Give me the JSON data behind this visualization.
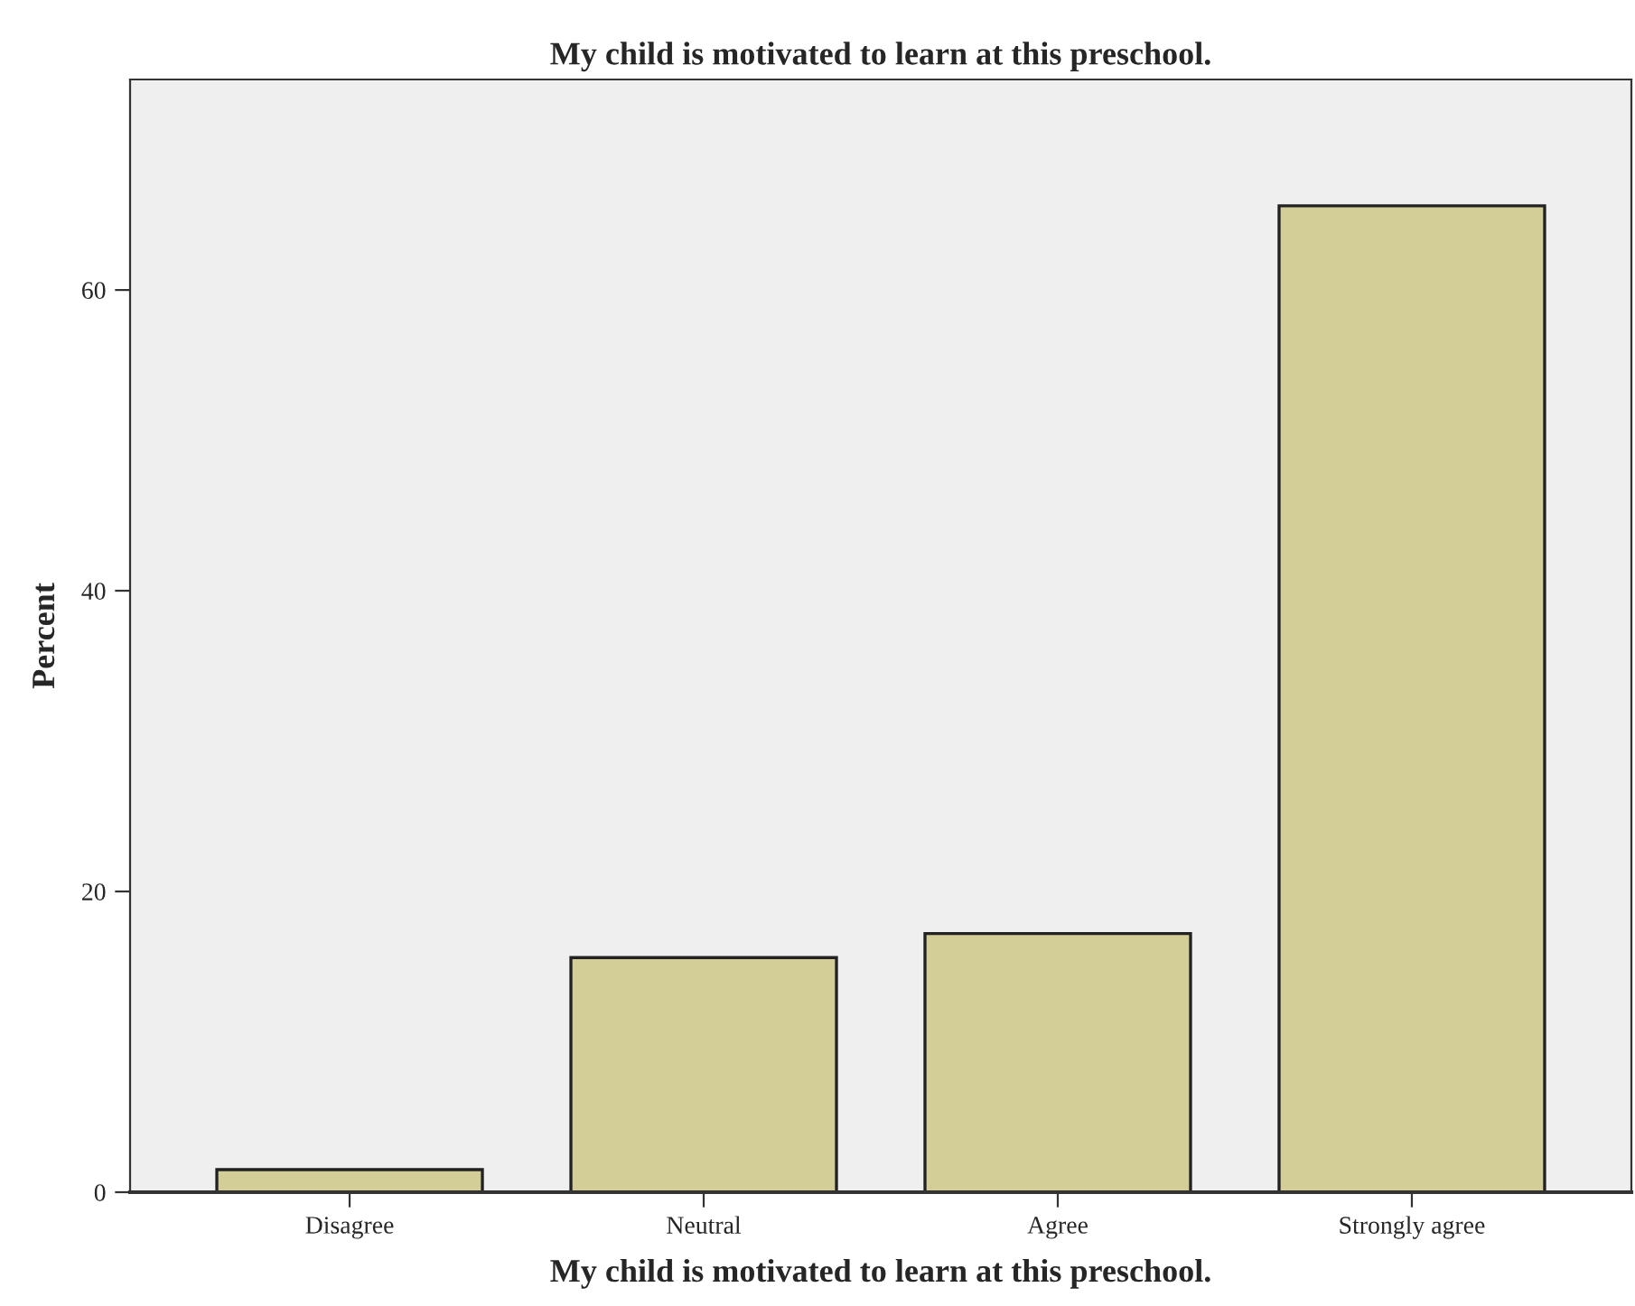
{
  "chart_data": {
    "type": "bar",
    "title": "My child is motivated to learn at this preschool.",
    "xlabel": "My child is motivated to learn at this preschool.",
    "ylabel": "Percent",
    "categories": [
      "Disagree",
      "Neutral",
      "Agree",
      "Strongly agree"
    ],
    "values": [
      1.5,
      15.6,
      17.2,
      65.6
    ],
    "color": "#d3ce97",
    "ylim": [
      0,
      74
    ],
    "yticks": [
      0,
      20,
      40,
      60
    ],
    "grid": false
  }
}
